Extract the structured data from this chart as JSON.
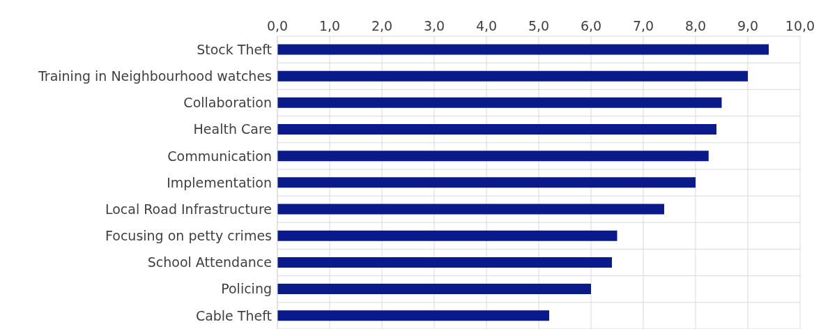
{
  "chart_data": {
    "type": "bar",
    "orientation": "horizontal",
    "categories": [
      "Stock Theft",
      "Training in Neighbourhood watches",
      "Collaboration",
      "Health Care",
      "Communication",
      "Implementation",
      "Local Road Infrastructure",
      "Focusing on petty crimes",
      "School Attendance",
      "Policing",
      "Cable Theft"
    ],
    "values": [
      9.4,
      9.0,
      8.5,
      8.4,
      8.25,
      8.0,
      7.4,
      6.5,
      6.4,
      6.0,
      5.2
    ],
    "color": "#0a1a8a",
    "xlim": [
      0,
      10
    ],
    "xticks": [
      {
        "value": 0,
        "label": "0,0"
      },
      {
        "value": 1,
        "label": "1,0"
      },
      {
        "value": 2,
        "label": "2,0"
      },
      {
        "value": 3,
        "label": "3,0"
      },
      {
        "value": 4,
        "label": "4,0"
      },
      {
        "value": 5,
        "label": "5,0"
      },
      {
        "value": 6,
        "label": "6,0"
      },
      {
        "value": 7,
        "label": "7,0"
      },
      {
        "value": 8,
        "label": "8,0"
      },
      {
        "value": 9,
        "label": "9,0"
      },
      {
        "value": 10,
        "label": "10,0"
      }
    ],
    "grid": true
  }
}
